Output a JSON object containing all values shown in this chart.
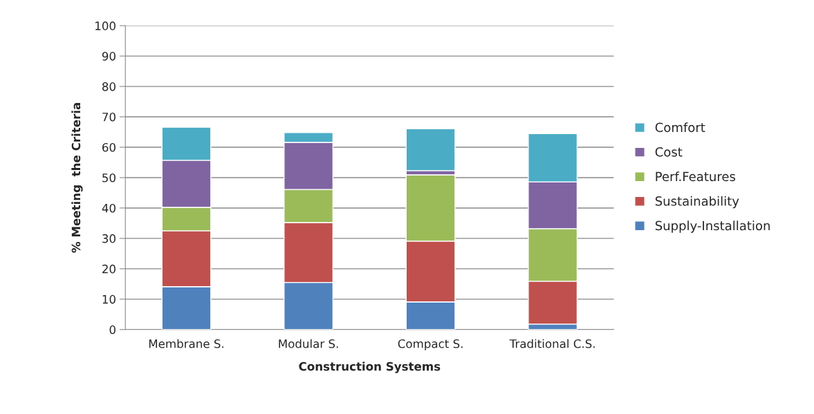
{
  "chart_data": {
    "type": "bar",
    "stacked": true,
    "xlabel": "Construction Systems",
    "ylabel": "% Meeting  the Criteria",
    "categories": [
      "Membrane S.",
      "Modular S.",
      "Compact S.",
      "Traditional C.S."
    ],
    "series": [
      {
        "name": "Supply-Installation",
        "color": "#4f81bd",
        "values": [
          14.1,
          15.5,
          9.1,
          1.8
        ]
      },
      {
        "name": "Sustainability",
        "color": "#c0504d",
        "values": [
          18.4,
          19.7,
          20.0,
          14.1
        ]
      },
      {
        "name": "Perf.Features",
        "color": "#9bbb59",
        "values": [
          7.7,
          10.9,
          21.8,
          17.3
        ]
      },
      {
        "name": "Cost",
        "color": "#8064a2",
        "values": [
          15.5,
          15.5,
          1.4,
          15.4
        ]
      },
      {
        "name": "Comfort",
        "color": "#4bacc6",
        "values": [
          10.9,
          3.2,
          13.8,
          15.9
        ]
      }
    ],
    "ylim": [
      0,
      100
    ],
    "yticks": [
      0,
      10,
      20,
      30,
      40,
      50,
      60,
      70,
      80,
      90,
      100
    ],
    "grid": "y",
    "legend": "right"
  }
}
